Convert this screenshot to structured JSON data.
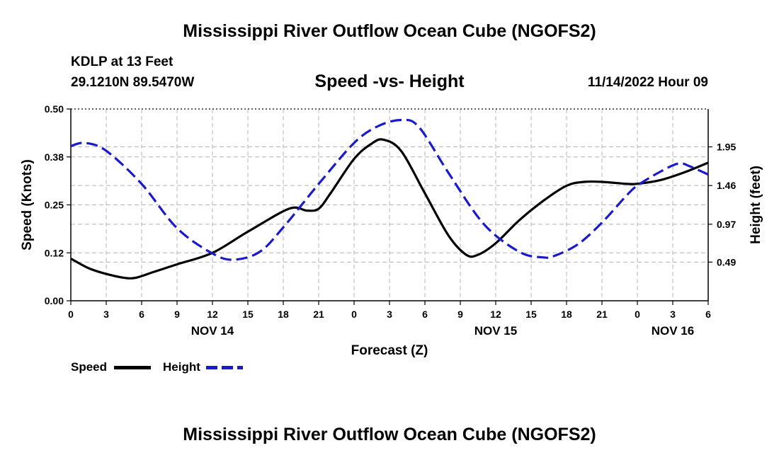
{
  "header": {
    "title": "Mississippi River Outflow Ocean Cube (NGOFS2)",
    "station": "KDLP at 13 Feet",
    "coords": "29.1210N  89.5470W",
    "subtitle": "Speed -vs- Height",
    "datetime": "11/14/2022 Hour 09"
  },
  "footer": {
    "title": "Mississippi River Outflow Ocean Cube (NGOFS2)"
  },
  "legend": {
    "items": [
      {
        "label": "Speed",
        "color": "#000000"
      },
      {
        "label": "Height",
        "color": "#1a1acc"
      }
    ]
  },
  "chart_data": {
    "type": "line",
    "title": "Speed -vs- Height",
    "xlabel": "Forecast (Z)",
    "ylabel": "Speed (Knots)",
    "y2label": "Height (feet)",
    "xlim": [
      0,
      54
    ],
    "ylim": [
      0,
      0.5
    ],
    "y2lim": [
      0.0,
      2.43
    ],
    "x_ticks": [
      {
        "x": 0,
        "label": "0"
      },
      {
        "x": 3,
        "label": "3"
      },
      {
        "x": 6,
        "label": "6"
      },
      {
        "x": 9,
        "label": "9"
      },
      {
        "x": 12,
        "label": "12"
      },
      {
        "x": 15,
        "label": "15"
      },
      {
        "x": 18,
        "label": "18"
      },
      {
        "x": 21,
        "label": "21"
      },
      {
        "x": 24,
        "label": "0"
      },
      {
        "x": 27,
        "label": "3"
      },
      {
        "x": 30,
        "label": "6"
      },
      {
        "x": 33,
        "label": "9"
      },
      {
        "x": 36,
        "label": "12"
      },
      {
        "x": 39,
        "label": "15"
      },
      {
        "x": 42,
        "label": "18"
      },
      {
        "x": 45,
        "label": "21"
      },
      {
        "x": 48,
        "label": "0"
      },
      {
        "x": 51,
        "label": "3"
      },
      {
        "x": 54,
        "label": "6"
      }
    ],
    "day_labels": [
      {
        "x": 12,
        "label": "NOV 14"
      },
      {
        "x": 36,
        "label": "NOV 15"
      },
      {
        "x": 51,
        "label": "NOV 16"
      }
    ],
    "y_ticks": [
      {
        "v": 0.0,
        "label": "0.00"
      },
      {
        "v": 0.125,
        "label": "0.12"
      },
      {
        "v": 0.25,
        "label": "0.25"
      },
      {
        "v": 0.375,
        "label": "0.38"
      },
      {
        "v": 0.5,
        "label": "0.50"
      }
    ],
    "y2_ticks": [
      {
        "v": 0.49,
        "label": "0.49"
      },
      {
        "v": 0.97,
        "label": "0.97"
      },
      {
        "v": 1.46,
        "label": "1.46"
      },
      {
        "v": 1.95,
        "label": "1.95"
      }
    ],
    "series": [
      {
        "name": "Speed",
        "axis": "left",
        "color": "#000000",
        "dash": "",
        "x": [
          0,
          1.5,
          3,
          4.5,
          5.5,
          7,
          9,
          12,
          15,
          18.5,
          20,
          21,
          22,
          24,
          25.5,
          26.5,
          28,
          30,
          32,
          33.5,
          34.5,
          36,
          38,
          40,
          42,
          43.5,
          45,
          47,
          48,
          50,
          52,
          54
        ],
        "y": [
          0.11,
          0.085,
          0.07,
          0.06,
          0.06,
          0.075,
          0.095,
          0.125,
          0.18,
          0.24,
          0.235,
          0.24,
          0.28,
          0.37,
          0.41,
          0.42,
          0.39,
          0.28,
          0.17,
          0.12,
          0.12,
          0.15,
          0.21,
          0.26,
          0.3,
          0.31,
          0.31,
          0.305,
          0.305,
          0.315,
          0.335,
          0.36
        ]
      },
      {
        "name": "Height",
        "axis": "right",
        "color": "#1a1acc",
        "dash": "16,7",
        "x": [
          0,
          1.2,
          3,
          6,
          9,
          12,
          13.8,
          16,
          18,
          21,
          24,
          26,
          28,
          29.5,
          32,
          35,
          38,
          40,
          41,
          43,
          45,
          47,
          48,
          50,
          51.5,
          52.5,
          54
        ],
        "y": [
          1.96,
          2.0,
          1.9,
          1.48,
          0.92,
          0.6,
          0.52,
          0.62,
          0.93,
          1.48,
          2.0,
          2.21,
          2.29,
          2.2,
          1.62,
          0.97,
          0.62,
          0.55,
          0.57,
          0.72,
          0.99,
          1.32,
          1.46,
          1.64,
          1.74,
          1.7,
          1.6
        ]
      }
    ]
  }
}
